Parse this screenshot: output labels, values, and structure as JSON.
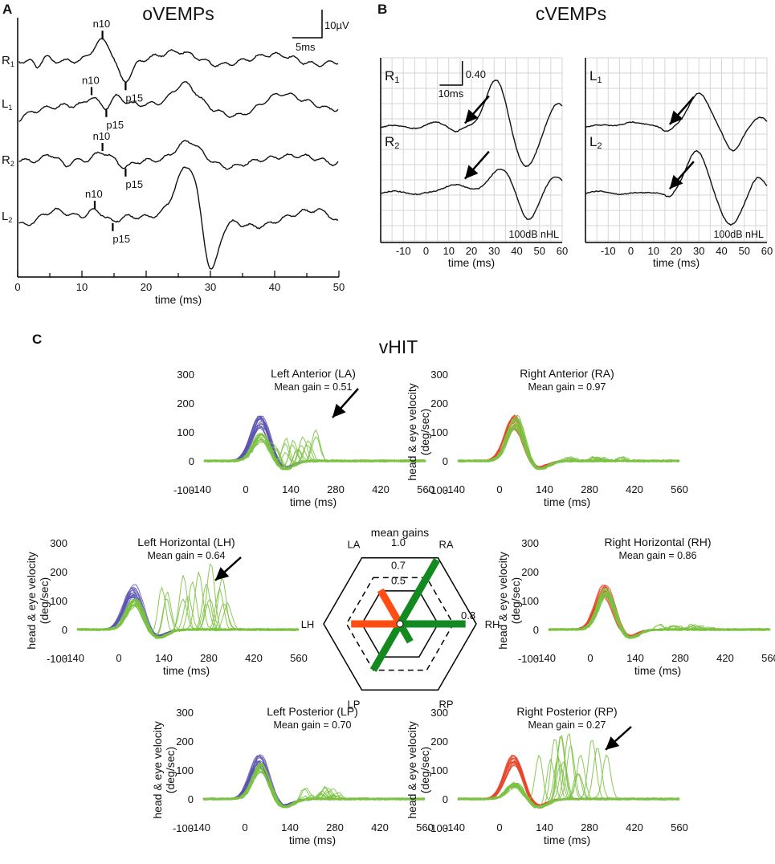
{
  "colors": {
    "head_left": "#5a54b0",
    "head_right": "#e8452a",
    "eye": "#7cc242",
    "gain_left": "#ff4d14",
    "gain_right": "#138a1f",
    "grid": "#d6d6d6",
    "trace": "#111111"
  },
  "chart_data": [
    {
      "panel": "A",
      "type": "line",
      "title": "oVEMPs",
      "xlabel": "time (ms)",
      "xlim": [
        0,
        50
      ],
      "xticks": [
        0,
        10,
        20,
        30,
        40,
        50
      ],
      "scale_bar": {
        "amplitude_label": "10µV",
        "time_label": "5ms"
      },
      "traces": [
        {
          "name": "R1",
          "label_main": "R",
          "label_sub": "1",
          "peaks": [
            {
              "label": "n10",
              "t": 13.2
            },
            {
              "label": "p15",
              "t": 16.8
            }
          ]
        },
        {
          "name": "L1",
          "label_main": "L",
          "label_sub": "1",
          "peaks": [
            {
              "label": "n10",
              "t": 11.5
            },
            {
              "label": "p15",
              "t": 13.8
            }
          ]
        },
        {
          "name": "R2",
          "label_main": "R",
          "label_sub": "2",
          "peaks": [
            {
              "label": "n10",
              "t": 13.2
            },
            {
              "label": "p15",
              "t": 16.8
            }
          ]
        },
        {
          "name": "L2",
          "label_main": "L",
          "label_sub": "2",
          "peaks": [
            {
              "label": "n10",
              "t": 12
            },
            {
              "label": "p15",
              "t": 14.8
            }
          ]
        }
      ]
    },
    {
      "panel": "B",
      "type": "line",
      "title": "cVEMPs",
      "xlabel": "time (ms)",
      "xlim": [
        -20,
        60
      ],
      "xticks": [
        -10,
        0,
        10,
        20,
        30,
        40,
        50,
        60
      ],
      "stimulus": "100dB nHL",
      "scale_bar": {
        "amplitude_label": "0.40",
        "time_label": "10ms"
      },
      "sides": [
        {
          "side": "Right",
          "traces": [
            {
              "label_main": "R",
              "label_sub": "1"
            },
            {
              "label_main": "R",
              "label_sub": "2"
            }
          ],
          "arrow_time_ms": 15
        },
        {
          "side": "Left",
          "traces": [
            {
              "label_main": "L",
              "label_sub": "1"
            },
            {
              "label_main": "L",
              "label_sub": "2"
            }
          ],
          "arrow_time_ms": 15
        }
      ]
    },
    {
      "panel": "C",
      "type": "line",
      "title": "vHIT",
      "xlabel": "time (ms)",
      "ylabel_line1": "head & eye velocity",
      "ylabel_line2": "(deg/sec)",
      "xlim": [
        -140,
        560
      ],
      "ylim": [
        -100,
        300
      ],
      "xticks": [
        -140,
        0,
        140,
        280,
        420,
        560
      ],
      "yticks": [
        300,
        200,
        100,
        0,
        -100
      ],
      "plots": [
        {
          "id": "LA",
          "title": "Left Anterior (LA)",
          "gain_text": "Mean gain = 0.51",
          "head_color": "head_left",
          "catch_up": "covert"
        },
        {
          "id": "RA",
          "title": "Right Anterior (RA)",
          "gain_text": "Mean gain = 0.97",
          "head_color": "head_right",
          "catch_up": "none"
        },
        {
          "id": "LH",
          "title": "Left Horizontal (LH)",
          "gain_text": "Mean gain = 0.64",
          "head_color": "head_left",
          "catch_up": "overt"
        },
        {
          "id": "RH",
          "title": "Right Horizontal (RH)",
          "gain_text": "Mean gain = 0.86",
          "head_color": "head_right",
          "catch_up": "none"
        },
        {
          "id": "LP",
          "title": "Left Posterior (LP)",
          "gain_text": "Mean gain = 0.70",
          "head_color": "head_left",
          "catch_up": "small"
        },
        {
          "id": "RP",
          "title": "Right Posterior (RP)",
          "gain_text": "Mean gain = 0.27",
          "head_color": "head_right",
          "catch_up": "overt"
        }
      ]
    },
    {
      "panel": "C-radar",
      "type": "radar",
      "title": "mean gains",
      "rings": [
        {
          "value": 1.0,
          "label": "1.0"
        },
        {
          "value": 0.7,
          "label": "0.7"
        },
        {
          "value": 0.5,
          "label": "0.5"
        }
      ],
      "ring_label_08": "0.8",
      "axes": [
        {
          "label": "LA",
          "gain": 0.51,
          "color": "gain_left"
        },
        {
          "label": "RA",
          "gain": 0.97,
          "color": "gain_right"
        },
        {
          "label": "RH",
          "gain": 0.86,
          "color": "gain_right"
        },
        {
          "label": "RP",
          "gain": 0.27,
          "color": "gain_right"
        },
        {
          "label": "LP",
          "gain": 0.7,
          "color": "gain_right"
        },
        {
          "label": "LH",
          "gain": 0.64,
          "color": "gain_left"
        }
      ]
    }
  ]
}
